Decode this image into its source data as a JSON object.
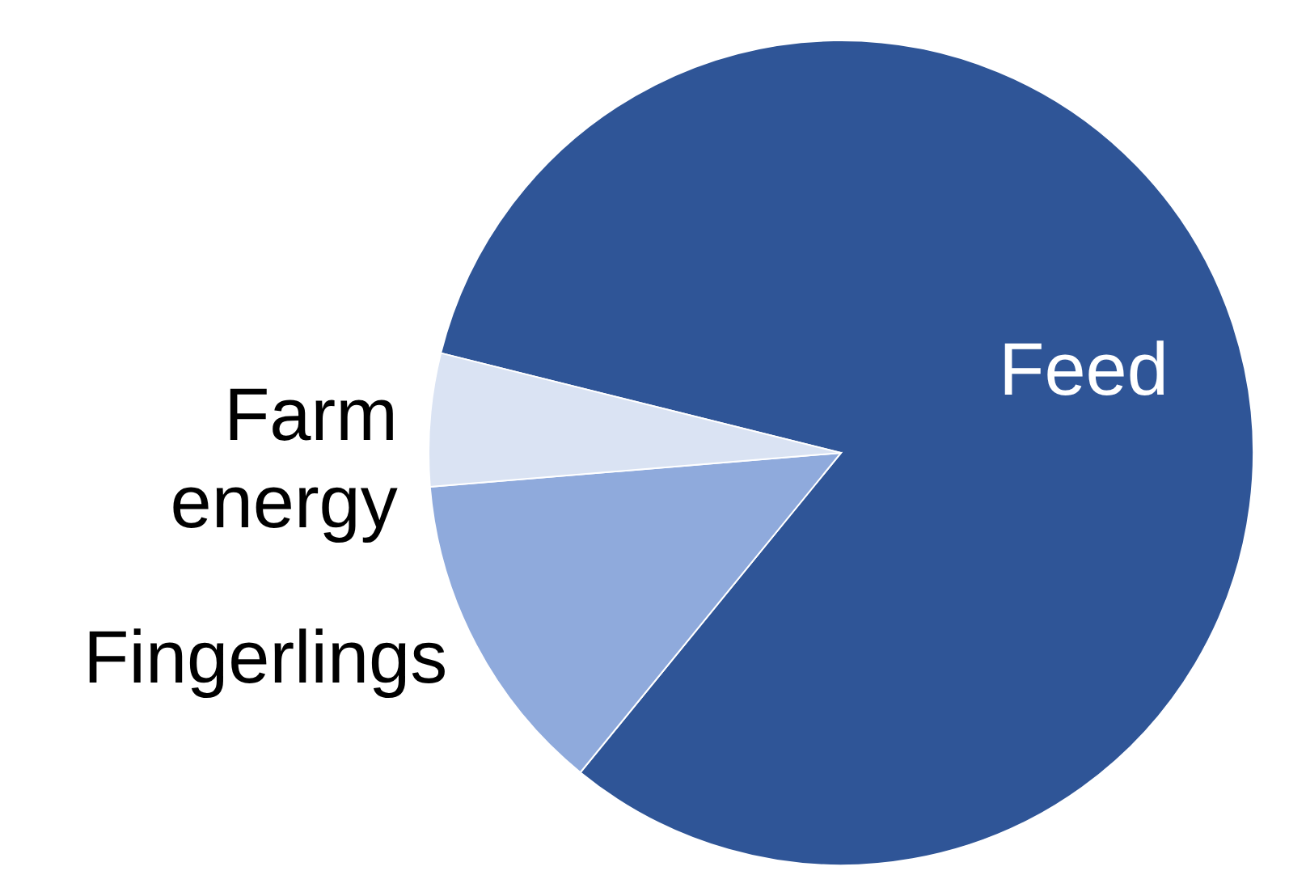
{
  "chart_data": {
    "type": "pie",
    "categories": [
      "Feed",
      "Fingerlings",
      "Farm energy"
    ],
    "values": [
      82,
      12.8,
      5.2
    ],
    "colors": [
      "#2f5597",
      "#8faadc",
      "#dae3f3"
    ]
  }
}
